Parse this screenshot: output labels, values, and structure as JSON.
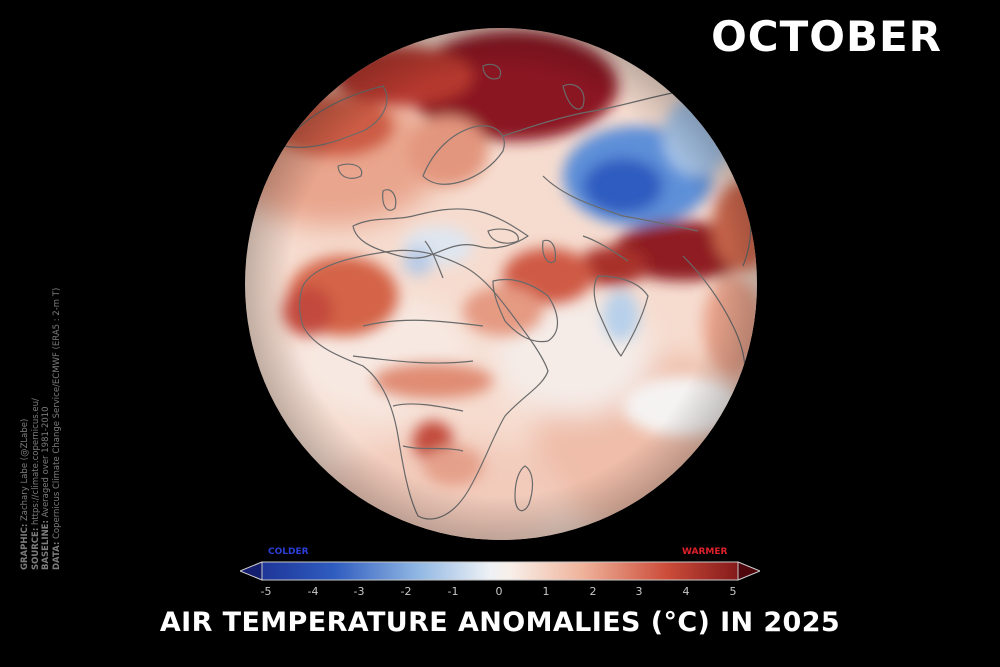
{
  "header": {
    "month": "OCTOBER"
  },
  "title": "AIR TEMPERATURE ANOMALIES (°C) IN 2025",
  "credits": {
    "graphic_key": "GRAPHIC:",
    "graphic_value": " Zachary Labe (@ZLabe)",
    "source_key": "SOURCE:",
    "source_value": " https://climate.copernicus.eu/",
    "baseline_key": "BASELINE:",
    "baseline_value": " Averaged over 1981-2010",
    "data_key": "DATA:",
    "data_value": " Copernicus Climate Change Service/ECMWF (ERA5 : 2-m T)"
  },
  "legend": {
    "cold_label": "COLDER",
    "warm_label": "WARMER",
    "ticks": [
      "-5",
      "-4",
      "-3",
      "-2",
      "-1",
      "0",
      "1",
      "2",
      "3",
      "4",
      "5"
    ],
    "range": [
      -5,
      5
    ],
    "unit": "°C",
    "colors": {
      "cold_extreme": "#1a2a8c",
      "cold": "#3f6fd0",
      "cool": "#a9c8e8",
      "neutral": "#f7f3f0",
      "warm": "#f0b69e",
      "hot": "#d0573e",
      "hot_extreme": "#6e0a12"
    }
  },
  "map": {
    "projection": "orthographic",
    "region": "Europe, Africa, Middle East and Asia",
    "background": "#000000",
    "coastline_color": "#6a6a6a"
  }
}
